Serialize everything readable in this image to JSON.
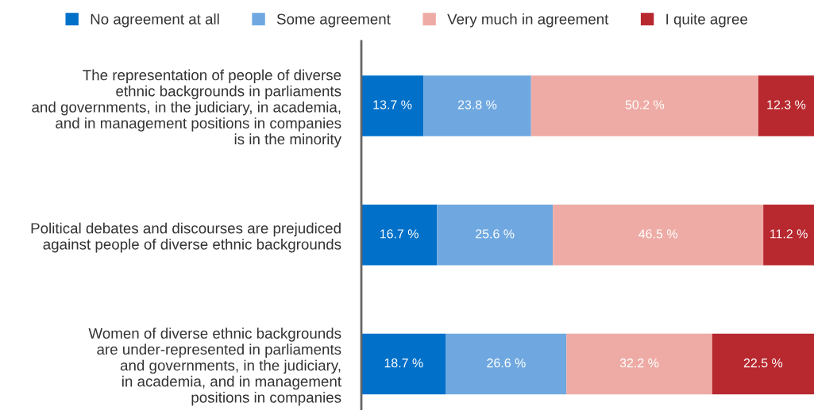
{
  "chart_data": {
    "type": "bar",
    "orientation": "horizontal",
    "stacked": true,
    "legend": "top",
    "tick_labels": "y",
    "grid": false,
    "categories": [
      "The representation of people of diverse\nethnic backgrounds in parliaments\nand governments, in the judiciary, in academia,\nand in management positions in companies\nis in the minority",
      "Political debates and discourses are prejudiced\nagainst people of diverse ethnic backgrounds",
      "Women of diverse ethnic backgrounds\nare under-represented in parliaments\nand governments, in the judiciary,\nin academia, and in management\npositions in companies"
    ],
    "xlim": [
      0,
      100
    ],
    "series": [
      {
        "name": "No agreement at all",
        "color": "#0070c9",
        "values": [
          13.7,
          16.7,
          18.7
        ],
        "value_labels": [
          "13.7 %",
          "16.7 %",
          "18.7 %"
        ]
      },
      {
        "name": "Some agreement",
        "color": "#6fa8e0",
        "values": [
          23.8,
          25.6,
          26.6
        ],
        "value_labels": [
          "23.8 %",
          "25.6 %",
          "26.6 %"
        ]
      },
      {
        "name": "Very much in agreement",
        "color": "#eeaba5",
        "values": [
          50.2,
          46.5,
          32.2
        ],
        "value_labels": [
          "50.2 %",
          "46.5 %",
          "32.2 %"
        ]
      },
      {
        "name": "I quite agree",
        "color": "#b8282f",
        "values": [
          12.3,
          11.2,
          22.5
        ],
        "value_labels": [
          "12.3 %",
          "11.2 %",
          "22.5 %"
        ]
      }
    ]
  }
}
